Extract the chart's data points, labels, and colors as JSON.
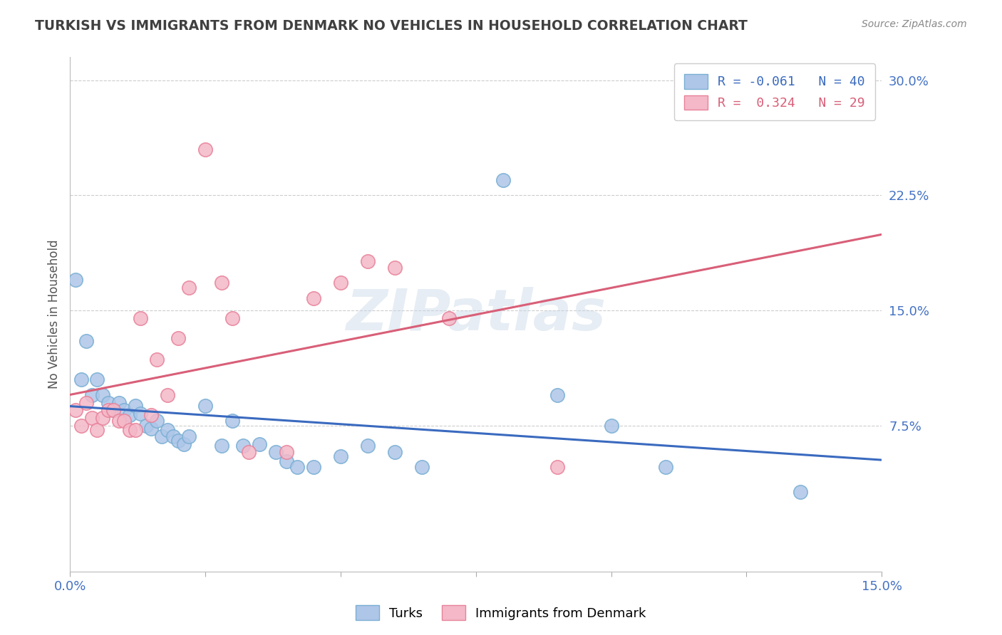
{
  "title": "TURKISH VS IMMIGRANTS FROM DENMARK NO VEHICLES IN HOUSEHOLD CORRELATION CHART",
  "source": "Source: ZipAtlas.com",
  "ylabel": "No Vehicles in Household",
  "xlabel": "",
  "xlim": [
    0.0,
    0.15
  ],
  "ylim": [
    -0.02,
    0.315
  ],
  "xticks": [
    0.0,
    0.025,
    0.05,
    0.075,
    0.1,
    0.125,
    0.15
  ],
  "xtick_labels": [
    "0.0%",
    "",
    "",
    "",
    "",
    "",
    "15.0%"
  ],
  "yticks": [
    0.075,
    0.15,
    0.225,
    0.3
  ],
  "ytick_labels": [
    "7.5%",
    "15.0%",
    "22.5%",
    "30.0%"
  ],
  "turks_R": -0.061,
  "turks_N": 40,
  "denmark_R": 0.324,
  "denmark_N": 29,
  "turks_color": "#aec6e8",
  "turks_edge": "#7aafd4",
  "denmark_color": "#f4b8c8",
  "denmark_edge": "#e8829a",
  "turks_line_color": "#3a6abf",
  "denmark_line_color": "#d95f78",
  "denmark_dash_color": "#c8c8c8",
  "watermark": "ZIPatlas",
  "watermark_color": "#c8d8e8",
  "background_color": "#ffffff",
  "grid_color": "#cccccc",
  "title_color": "#404040",
  "axis_label_color": "#4472c4",
  "marker_size": 14,
  "turks_x": [
    0.001,
    0.002,
    0.003,
    0.004,
    0.005,
    0.006,
    0.007,
    0.008,
    0.009,
    0.01,
    0.011,
    0.012,
    0.013,
    0.014,
    0.015,
    0.016,
    0.017,
    0.018,
    0.019,
    0.02,
    0.021,
    0.022,
    0.025,
    0.028,
    0.03,
    0.032,
    0.035,
    0.038,
    0.04,
    0.042,
    0.045,
    0.05,
    0.055,
    0.06,
    0.065,
    0.08,
    0.09,
    0.1,
    0.11,
    0.135
  ],
  "turks_y": [
    0.17,
    0.105,
    0.13,
    0.095,
    0.105,
    0.095,
    0.09,
    0.085,
    0.09,
    0.085,
    0.082,
    0.088,
    0.083,
    0.075,
    0.073,
    0.078,
    0.068,
    0.072,
    0.068,
    0.065,
    0.063,
    0.068,
    0.088,
    0.062,
    0.078,
    0.062,
    0.063,
    0.058,
    0.052,
    0.048,
    0.048,
    0.055,
    0.062,
    0.058,
    0.048,
    0.235,
    0.095,
    0.075,
    0.048,
    0.032
  ],
  "denmark_x": [
    0.001,
    0.002,
    0.003,
    0.004,
    0.005,
    0.006,
    0.007,
    0.008,
    0.009,
    0.01,
    0.011,
    0.012,
    0.013,
    0.015,
    0.016,
    0.018,
    0.02,
    0.022,
    0.025,
    0.028,
    0.03,
    0.033,
    0.04,
    0.045,
    0.05,
    0.055,
    0.06,
    0.07,
    0.09
  ],
  "denmark_y": [
    0.085,
    0.075,
    0.09,
    0.08,
    0.072,
    0.08,
    0.085,
    0.085,
    0.078,
    0.078,
    0.072,
    0.072,
    0.145,
    0.082,
    0.118,
    0.095,
    0.132,
    0.165,
    0.255,
    0.168,
    0.145,
    0.058,
    0.058,
    0.158,
    0.168,
    0.182,
    0.178,
    0.145,
    0.048
  ]
}
